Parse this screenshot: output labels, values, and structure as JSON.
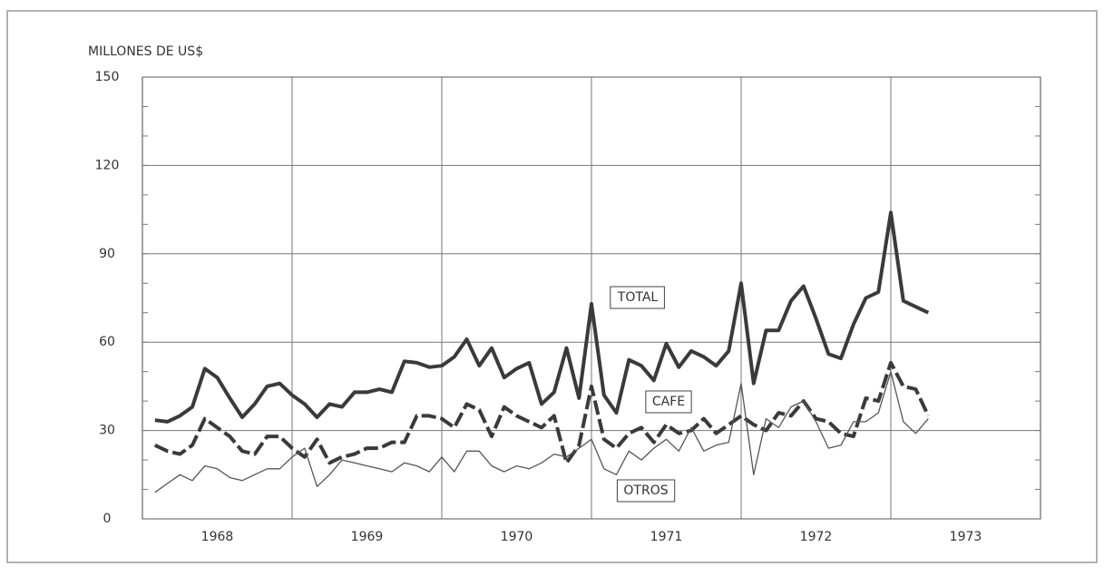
{
  "chart_data": {
    "type": "line",
    "y_label": "MILLONES DE US$",
    "categories": [
      null,
      null,
      null,
      null,
      null,
      "1968",
      null,
      null,
      null,
      null,
      null,
      null,
      null,
      null,
      null,
      null,
      null,
      "1969",
      null,
      null,
      null,
      null,
      null,
      null,
      null,
      null,
      null,
      null,
      null,
      "1970",
      null,
      null,
      null,
      null,
      null,
      null,
      null,
      null,
      null,
      null,
      null,
      "1971",
      null,
      null,
      null,
      null,
      null,
      null,
      null,
      null,
      null,
      null,
      null,
      "1972",
      null,
      null,
      null,
      null,
      null,
      null,
      null,
      null,
      null,
      null,
      null,
      "1973",
      null,
      null,
      null,
      null,
      null,
      null
    ],
    "series": [
      {
        "name": "TOTAL",
        "color": "#3a3a3a",
        "values": [
          33.5,
          33,
          35,
          38,
          51,
          48,
          41,
          34.5,
          39,
          45,
          46,
          42,
          39,
          34.5,
          39,
          38,
          43,
          43,
          44,
          43,
          53.5,
          53,
          51.5,
          52,
          55,
          61,
          52,
          58,
          48,
          51,
          53,
          39,
          43,
          58,
          41,
          73,
          42,
          36,
          54,
          52,
          47,
          59.5,
          51.5,
          57,
          55,
          52,
          57,
          80,
          46,
          64,
          64,
          74,
          79,
          68,
          56,
          54.5,
          66,
          75,
          77,
          104,
          74,
          72,
          70,
          null,
          null,
          null,
          null,
          null,
          null,
          null,
          null,
          null
        ]
      },
      {
        "name": "CAFE",
        "color": "#3a3a3a",
        "values": [
          25,
          23,
          22,
          25,
          34,
          31,
          28,
          23,
          22,
          28,
          28,
          24,
          21,
          27,
          19,
          21,
          22,
          24,
          24,
          26,
          26,
          35,
          35,
          34,
          31,
          39,
          37,
          28,
          38,
          35,
          33,
          31,
          35,
          19,
          25,
          45,
          27,
          24,
          29,
          31,
          26,
          32,
          29,
          30,
          34,
          29,
          32,
          35,
          32,
          30,
          36,
          35,
          40,
          34,
          33,
          29,
          28,
          41,
          40,
          53,
          45,
          44,
          35,
          null,
          null,
          null,
          null,
          null,
          null,
          null,
          null,
          null
        ]
      },
      {
        "name": "OTROS",
        "color": "#555555",
        "values": [
          9,
          12,
          15,
          13,
          18,
          17,
          14,
          13,
          15,
          17,
          17,
          21,
          24,
          11,
          15,
          20,
          19,
          18,
          17,
          16,
          19,
          18,
          16,
          21,
          16,
          23,
          23,
          18,
          16,
          18,
          17,
          19,
          22,
          21,
          24,
          27,
          17,
          15,
          23,
          20,
          24,
          27,
          23,
          31,
          23,
          25,
          26,
          46,
          15,
          34,
          31,
          38,
          40,
          33,
          24,
          25,
          33,
          33,
          36,
          50,
          33,
          29,
          34,
          null,
          null,
          null,
          null,
          null,
          null,
          null,
          null,
          null
        ]
      }
    ],
    "ylim": [
      0,
      150
    ],
    "yticks": [
      0,
      30,
      60,
      90,
      120,
      150
    ],
    "grid": true
  }
}
